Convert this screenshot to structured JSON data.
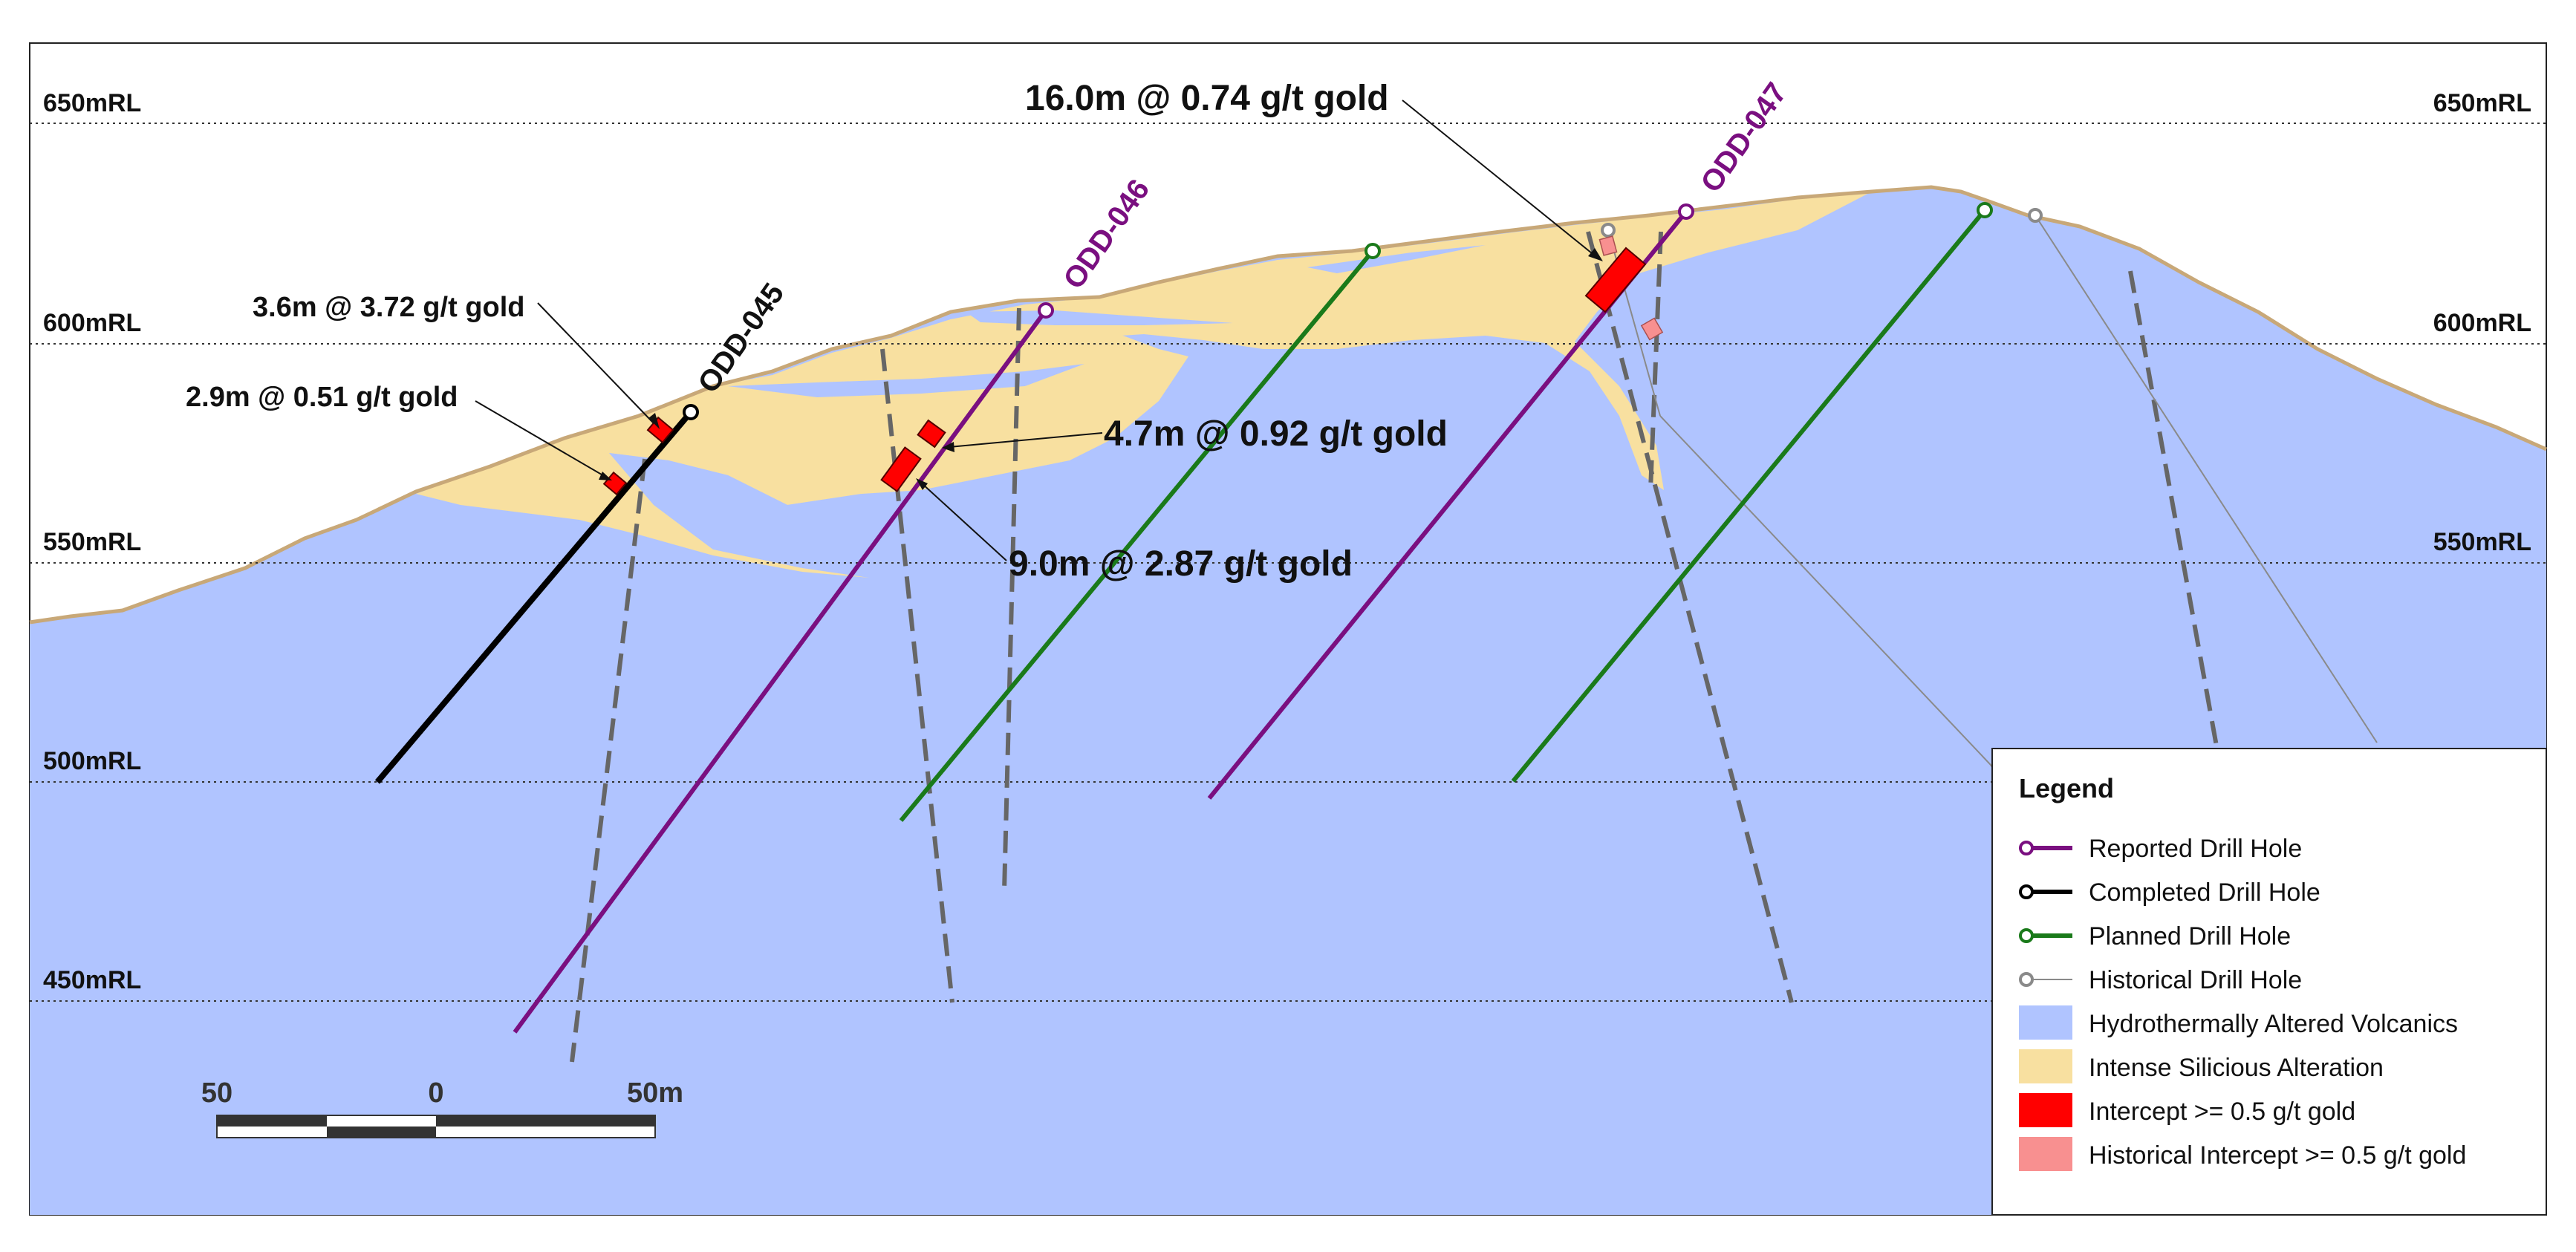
{
  "rl_labels": {
    "rl650": "650mRL",
    "rl600": "600mRL",
    "rl550": "550mRL",
    "rl500": "500mRL",
    "rl450": "450mRL"
  },
  "drill_holes": {
    "odd045": "ODD-045",
    "odd046": "ODD-046",
    "odd047": "ODD-047"
  },
  "intercepts": {
    "i1": "16.0m @ 0.74 g/t gold",
    "i2": "3.6m @ 3.72 g/t gold",
    "i3": "2.9m @ 0.51 g/t gold",
    "i4": "4.7m @ 0.92 g/t gold",
    "i5": "9.0m @ 2.87 g/t gold"
  },
  "scale_bar": {
    "left": "50",
    "center": "0",
    "right": "50m"
  },
  "legend": {
    "title": "Legend",
    "items": [
      {
        "label": "Reported Drill Hole",
        "color": "#7a0f80",
        "icon": "drill-hole-line"
      },
      {
        "label": "Completed Drill Hole",
        "color": "#000000",
        "icon": "drill-hole-line"
      },
      {
        "label": "Planned Drill Hole",
        "color": "#1a7a1a",
        "icon": "drill-hole-line"
      },
      {
        "label": "Historical Drill Hole",
        "color": "#8a8a8a",
        "icon": "drill-hole-line"
      },
      {
        "label": "Hydrothermally Altered Volcanics",
        "color": "#b0c4ff",
        "icon": "swatch"
      },
      {
        "label": "Intense Silicious Alteration",
        "color": "#f8e0a0",
        "icon": "swatch"
      },
      {
        "label": "Intercept >= 0.5 g/t gold",
        "color": "#ff0000",
        "icon": "swatch"
      },
      {
        "label": "Historical Intercept >= 0.5 g/t gold",
        "color": "#f89090",
        "icon": "swatch"
      }
    ]
  },
  "colors": {
    "volcanics": "#b0c4ff",
    "silicious": "#f8e0a0",
    "topo_line": "#c8a878",
    "reported": "#7a0f80",
    "completed": "#000000",
    "planned": "#1a7a1a",
    "historical": "#8a8a8a",
    "intercept": "#ff0000",
    "historical_intercept": "#f89090",
    "fault": "#666666"
  }
}
